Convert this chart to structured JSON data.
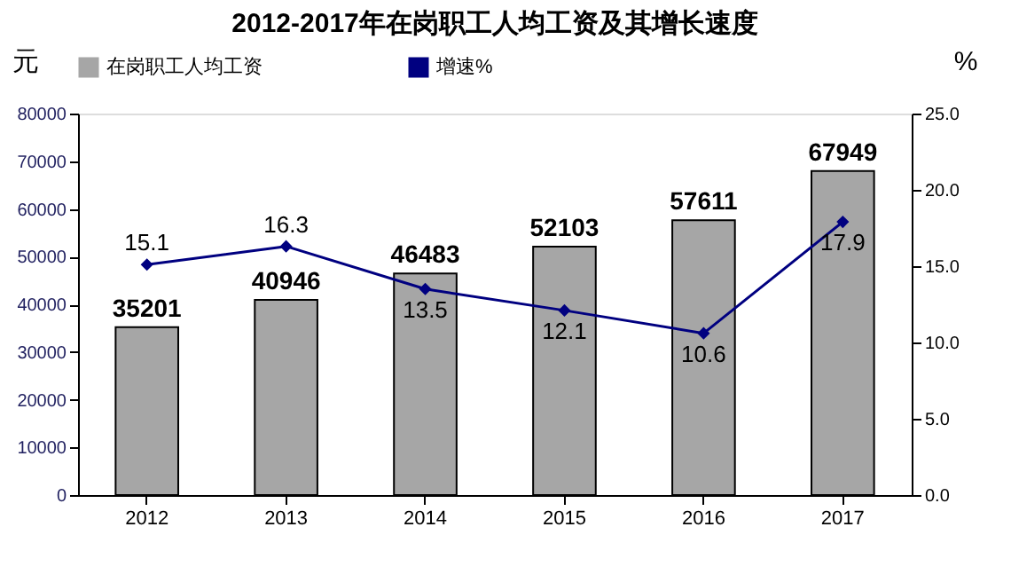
{
  "chart_data": {
    "type": "bar",
    "title": "2012-2017年在岗职工人均工资及其增长速度",
    "ylabel": "元",
    "y2label": "%",
    "categories": [
      "2012",
      "2013",
      "2014",
      "2015",
      "2016",
      "2017"
    ],
    "series": [
      {
        "name": "在岗职工人均工资",
        "type": "bar",
        "color": "#a6a6a6",
        "values": [
          35201,
          40946,
          46483,
          52103,
          57611,
          67949
        ]
      },
      {
        "name": "增速%",
        "type": "line",
        "axis": "y2",
        "color": "#000080",
        "marker": "diamond",
        "values": [
          15.1,
          16.3,
          13.5,
          12.1,
          10.6,
          17.9
        ]
      }
    ],
    "ylim": [
      0,
      80000
    ],
    "yticks": [
      0,
      10000,
      20000,
      30000,
      40000,
      50000,
      60000,
      70000,
      80000
    ],
    "y2lim": [
      0,
      25
    ],
    "y2ticks": [
      {
        "value": 0,
        "label": "0.0"
      },
      {
        "value": 5,
        "label": "5.0"
      },
      {
        "value": 10,
        "label": "10.0"
      },
      {
        "value": 15,
        "label": "15.0"
      },
      {
        "value": 20,
        "label": "20.0"
      },
      {
        "value": 25,
        "label": "25.0"
      }
    ],
    "data_labels": true,
    "grid": false,
    "legend": "top"
  }
}
